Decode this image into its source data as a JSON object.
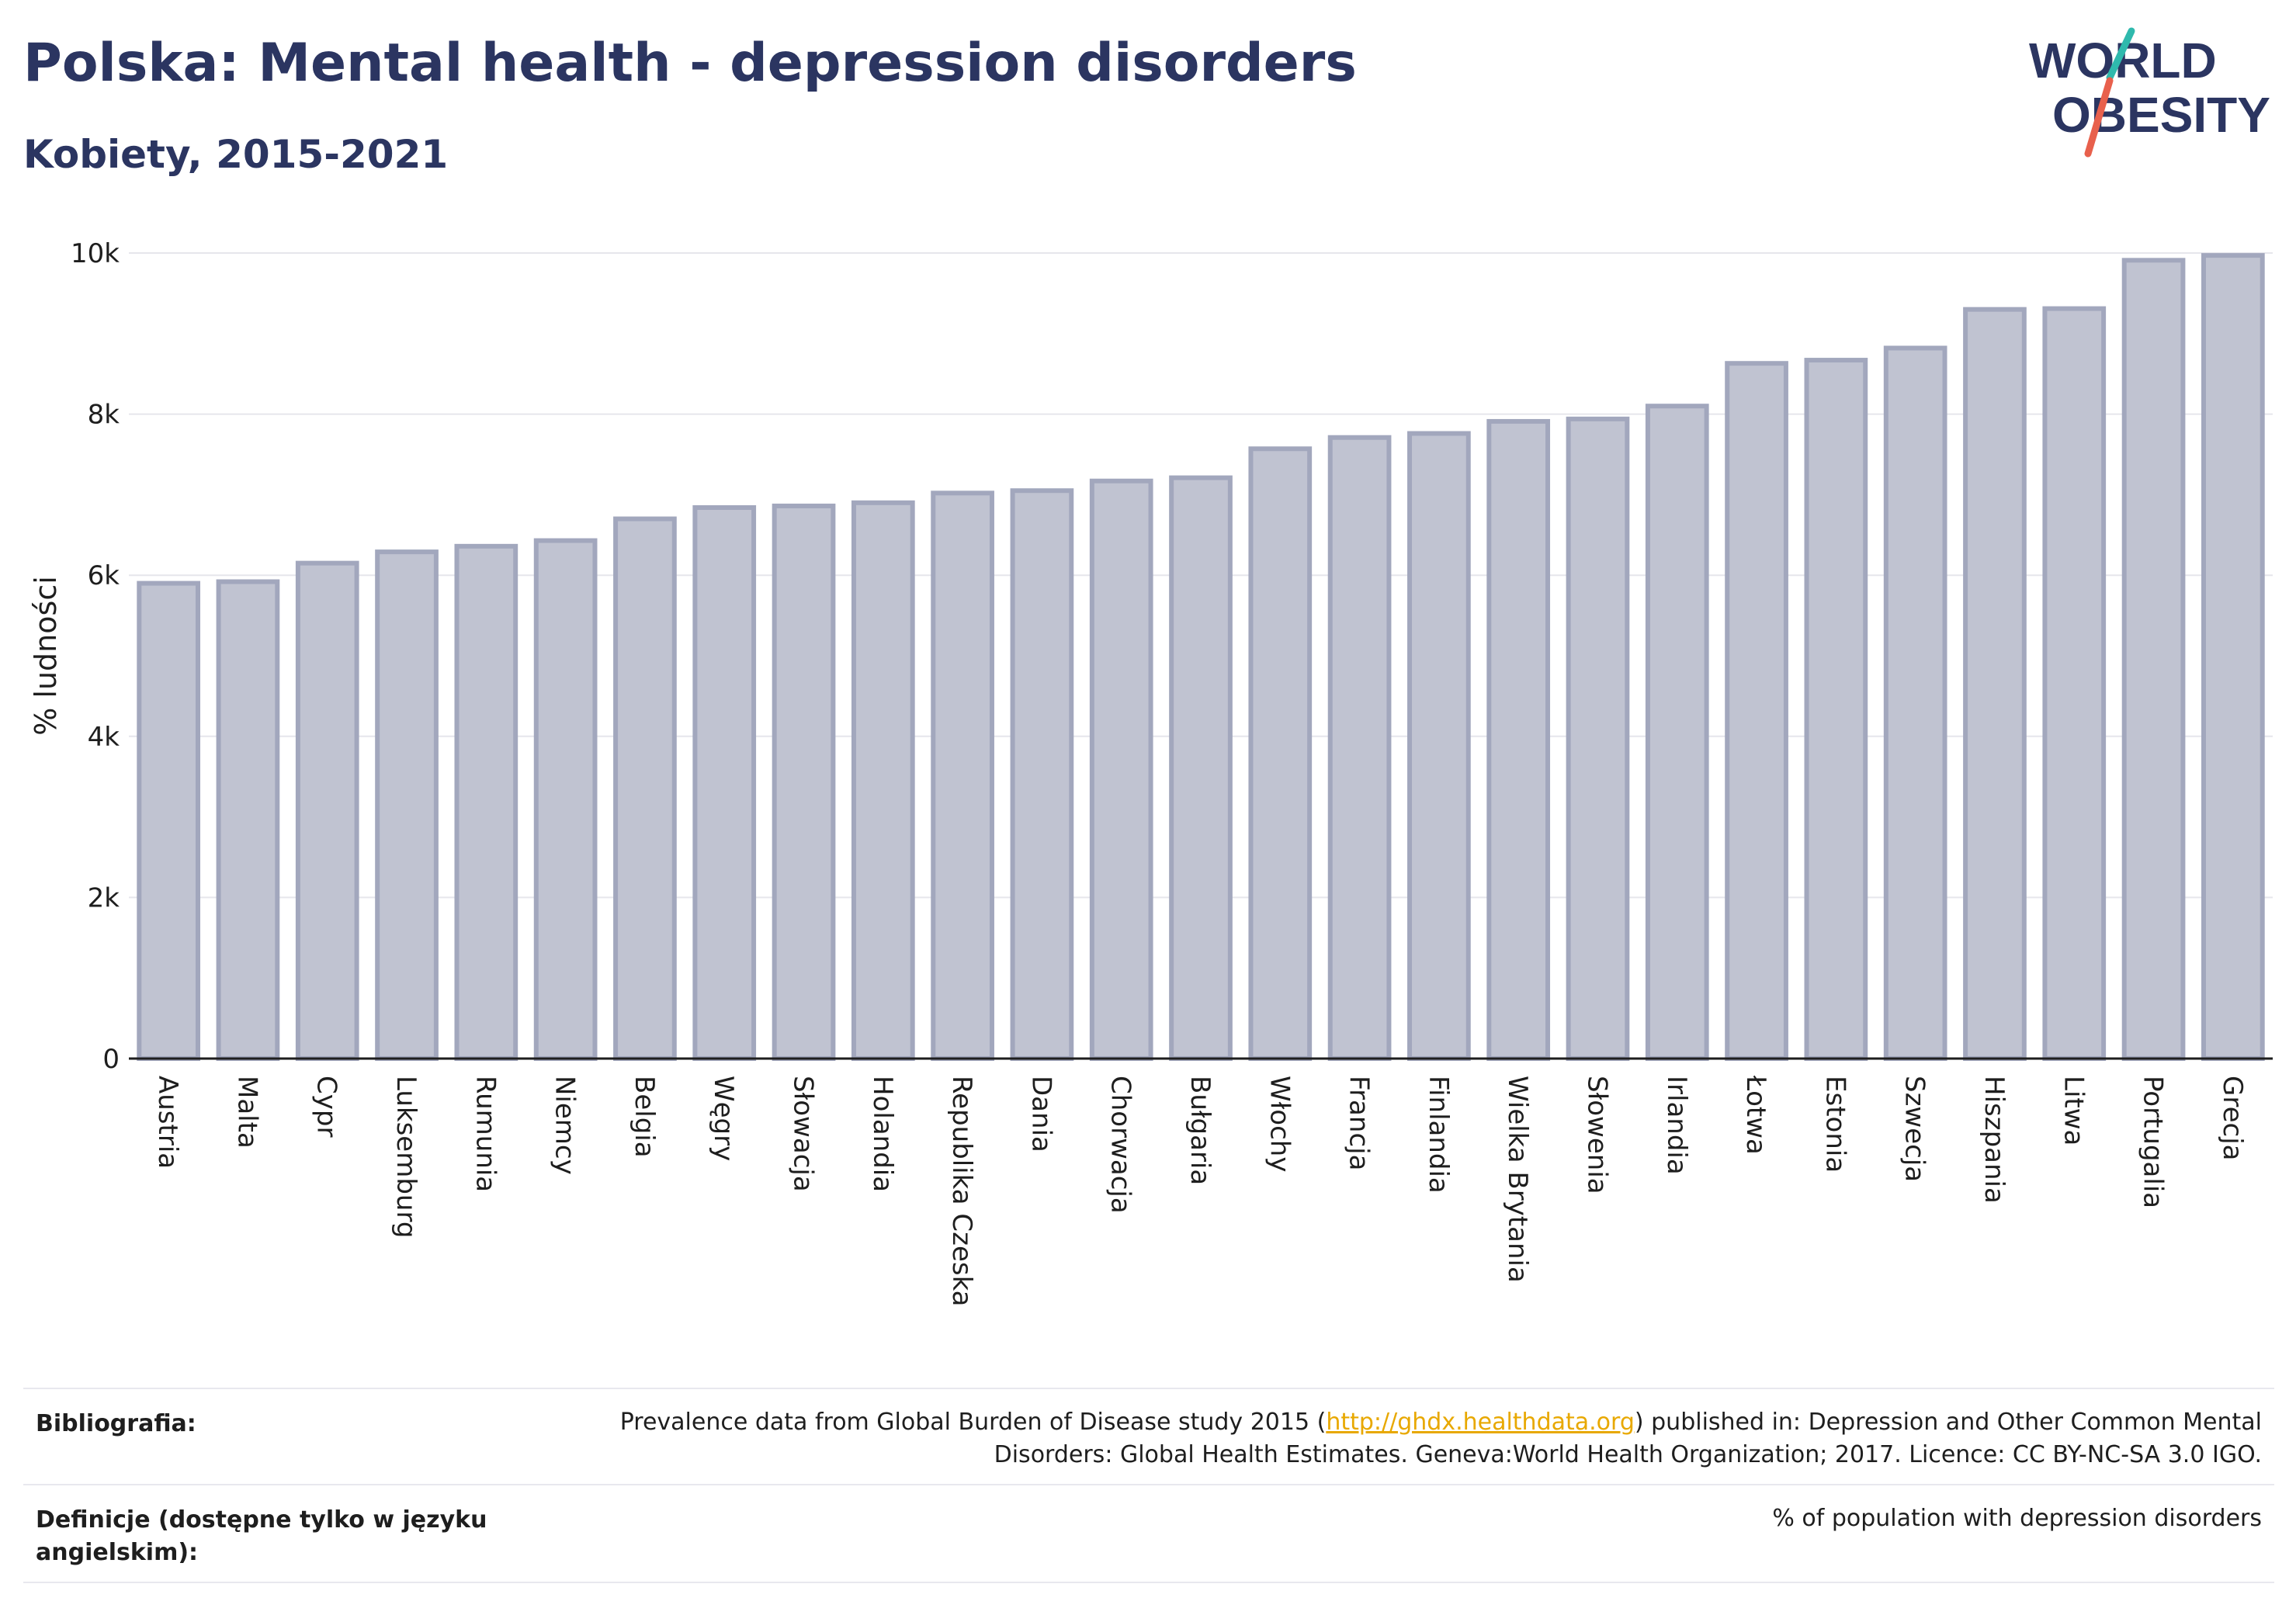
{
  "header": {
    "title": "Polska: Mental health - depression disorders",
    "subtitle": "Kobiety, 2015-2021"
  },
  "logo": {
    "line1": "WORLD",
    "line2": "OBESITY",
    "colors": {
      "text": "#2b3561",
      "accent_teal": "#2fb9ad",
      "accent_red": "#e8604c"
    }
  },
  "chart_data": {
    "type": "bar",
    "ylabel": "% ludności",
    "ylim": [
      0,
      10000
    ],
    "yticks": [
      0,
      2000,
      4000,
      6000,
      8000,
      10000
    ],
    "ytick_labels": [
      "0",
      "2k",
      "4k",
      "6k",
      "8k",
      "10k"
    ],
    "grid": true,
    "categories": [
      "Austria",
      "Malta",
      "Cypr",
      "Luksemburg",
      "Rumunia",
      "Niemcy",
      "Belgia",
      "Węgry",
      "Słowacja",
      "Holandia",
      "Republika Czeska",
      "Dania",
      "Chorwacja",
      "Bułgaria",
      "Włochy",
      "Francja",
      "Finlandia",
      "Wielka Brytania",
      "Słowenia",
      "Irlandia",
      "Łotwa",
      "Estonia",
      "Szwecja",
      "Hiszpania",
      "Litwa",
      "Portugalia",
      "Grecja"
    ],
    "values": [
      5900,
      5920,
      6150,
      6290,
      6360,
      6430,
      6700,
      6840,
      6860,
      6900,
      7020,
      7050,
      7170,
      7210,
      7570,
      7710,
      7760,
      7910,
      7940,
      8100,
      8630,
      8670,
      8820,
      9300,
      9310,
      9910,
      9970
    ],
    "colors": {
      "bar_fill": "#c0c3d1",
      "bar_stroke": "#a2a7bd",
      "axis": "#1e1e1e",
      "grid": "#e6e6ec"
    }
  },
  "footer": {
    "bibliography_label": "Bibliografia:",
    "bibliography_pre": "Prevalence data from Global Burden of Disease study 2015 (",
    "bibliography_link": "http://ghdx.healthdata.org",
    "bibliography_post": ") published in: Depression and Other Common Mental Disorders: Global Health Estimates. Geneva:World Health Organization; 2017. Licence: CC BY-NC-SA 3.0 IGO.",
    "definition_label": "Definicje (dostępne tylko w języku angielskim):",
    "definition_value": "% of population with depression disorders"
  }
}
